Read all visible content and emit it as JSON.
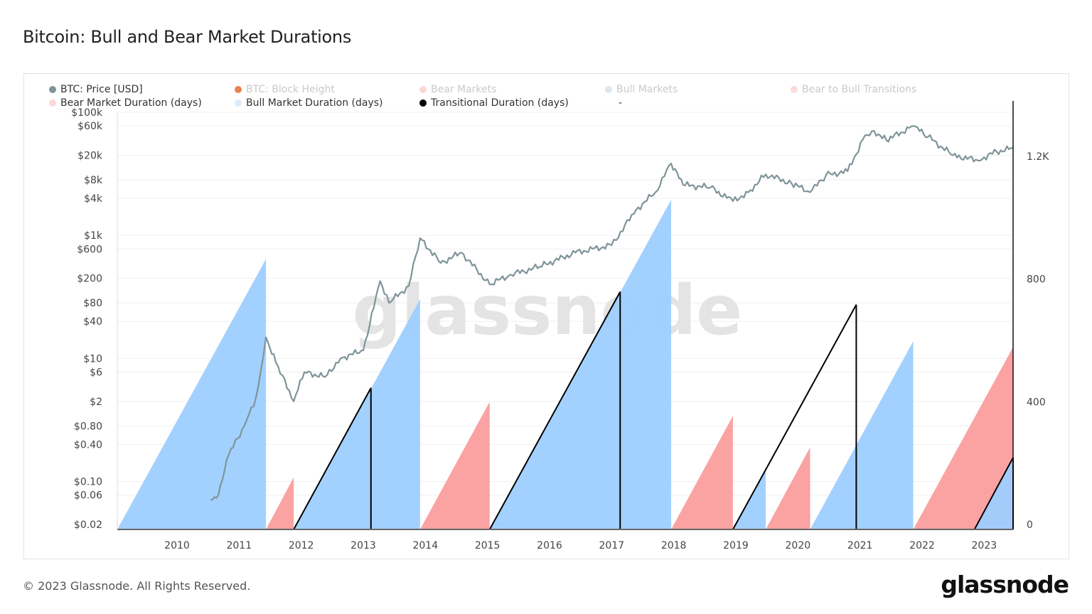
{
  "title": "Bitcoin: Bull and Bear Market Durations",
  "footer": "© 2023 Glassnode. All Rights Reserved.",
  "logo": "glassnode",
  "watermark": "glassnode",
  "legend": [
    {
      "label": "BTC: Price [USD]",
      "color": "#7f9499",
      "faded": false
    },
    {
      "label": "BTC: Block Height",
      "color": "#e8834f",
      "faded": true
    },
    {
      "label": "Bear Markets",
      "color": "#fcd5d5",
      "faded": true
    },
    {
      "label": "Bull Markets",
      "color": "#dce7ee",
      "faded": true
    },
    {
      "label": "Bear to Bull Transitions",
      "color": "#f9dcdc",
      "faded": true
    },
    {
      "label": "Bear Market Duration (days)",
      "color": "#fcd9d9",
      "faded": false
    },
    {
      "label": "Bull Market Duration (days)",
      "color": "#dcebfb",
      "faded": false
    },
    {
      "label": "Transitional Duration (days)",
      "color": "#000000",
      "faded": false
    },
    {
      "label": "-",
      "color": "",
      "faded": false
    }
  ],
  "chart_data": {
    "type": "area",
    "title": "Bitcoin: Bull and Bear Market Durations",
    "x_range": [
      "2009-01-15",
      "2023-06-20"
    ],
    "x_ticks": [
      "2010",
      "2011",
      "2012",
      "2013",
      "2014",
      "2015",
      "2016",
      "2017",
      "2018",
      "2019",
      "2020",
      "2021",
      "2022",
      "2023"
    ],
    "y_left": {
      "scale": "log",
      "range": [
        0.02,
        100000
      ],
      "ticks": [
        {
          "label": "$100k",
          "value": 100000
        },
        {
          "label": "$60k",
          "value": 60000
        },
        {
          "label": "$20k",
          "value": 20000
        },
        {
          "label": "$8k",
          "value": 8000
        },
        {
          "label": "$4k",
          "value": 4000
        },
        {
          "label": "$1k",
          "value": 1000
        },
        {
          "label": "$600",
          "value": 600
        },
        {
          "label": "$200",
          "value": 200
        },
        {
          "label": "$80",
          "value": 80
        },
        {
          "label": "$40",
          "value": 40
        },
        {
          "label": "$10",
          "value": 10
        },
        {
          "label": "$6",
          "value": 6
        },
        {
          "label": "$2",
          "value": 2
        },
        {
          "label": "$0.80",
          "value": 0.8
        },
        {
          "label": "$0.40",
          "value": 0.4
        },
        {
          "label": "$0.10",
          "value": 0.1
        },
        {
          "label": "$0.06",
          "value": 0.06
        },
        {
          "label": "$0.02",
          "value": 0.02
        }
      ]
    },
    "y_right": {
      "scale": "linear",
      "range": [
        0,
        1400
      ],
      "ticks": [
        {
          "label": "0",
          "value": 0
        },
        {
          "label": "400",
          "value": 400
        },
        {
          "label": "800",
          "value": 800
        },
        {
          "label": "1.2K",
          "value": 1200
        }
      ]
    },
    "colors": {
      "price": "#7f9499",
      "bull": "#9ecfff",
      "bear": "#fb9d9d",
      "transition": "#000000"
    },
    "grid": true,
    "legend_position": "top",
    "duration_series": [
      {
        "series": "Bull Market Duration (days)",
        "kind": "bull",
        "start": "2009-01-15",
        "end": "2011-06-08"
      },
      {
        "series": "Bear Market Duration (days)",
        "kind": "bear",
        "start": "2011-06-08",
        "end": "2011-11-18"
      },
      {
        "series": "Bull Market Duration (days)",
        "kind": "bull",
        "start": "2011-11-18",
        "end": "2013-12-01"
      },
      {
        "series": "Transitional Duration (days)",
        "kind": "transition",
        "start": "2011-11-18",
        "end": "2013-02-15"
      },
      {
        "series": "Bear Market Duration (days)",
        "kind": "bear",
        "start": "2013-12-01",
        "end": "2015-01-14"
      },
      {
        "series": "Bull Market Duration (days)",
        "kind": "bull",
        "start": "2015-01-14",
        "end": "2017-12-17"
      },
      {
        "series": "Transitional Duration (days)",
        "kind": "transition",
        "start": "2015-01-14",
        "end": "2017-02-20"
      },
      {
        "series": "Bear Market Duration (days)",
        "kind": "bear",
        "start": "2017-12-17",
        "end": "2018-12-15"
      },
      {
        "series": "Bull Market Duration (days)",
        "kind": "bull",
        "start": "2018-12-15",
        "end": "2019-06-26"
      },
      {
        "series": "Transitional Duration (days)",
        "kind": "transition",
        "start": "2018-12-15",
        "end": "2020-12-10"
      },
      {
        "series": "Bear Market Duration (days)",
        "kind": "bear",
        "start": "2019-06-26",
        "end": "2020-03-13"
      },
      {
        "series": "Bull Market Duration (days)",
        "kind": "bull",
        "start": "2020-03-13",
        "end": "2021-11-10"
      },
      {
        "series": "Bear Market Duration (days)",
        "kind": "bear",
        "start": "2021-11-10",
        "end": "2023-06-20"
      },
      {
        "series": "Bull Market Duration (days)",
        "kind": "bull",
        "start": "2022-11-05",
        "end": "2023-06-20"
      },
      {
        "series": "Transitional Duration (days)",
        "kind": "transition",
        "start": "2022-11-05",
        "end": "2023-06-20"
      }
    ],
    "price_series": {
      "name": "BTC: Price [USD]",
      "points": [
        [
          "2010-07-18",
          0.05
        ],
        [
          "2010-09-01",
          0.06
        ],
        [
          "2010-11-01",
          0.27
        ],
        [
          "2011-02-01",
          0.8
        ],
        [
          "2011-04-10",
          2.3
        ],
        [
          "2011-05-10",
          6.6
        ],
        [
          "2011-06-08",
          22
        ],
        [
          "2011-08-05",
          8.6
        ],
        [
          "2011-11-18",
          2.0
        ],
        [
          "2012-01-20",
          6
        ],
        [
          "2012-05-20",
          5
        ],
        [
          "2012-08-20",
          10
        ],
        [
          "2013-01-01",
          13.5
        ],
        [
          "2013-04-10",
          180
        ],
        [
          "2013-06-01",
          80
        ],
        [
          "2013-09-25",
          150
        ],
        [
          "2013-12-01",
          900
        ],
        [
          "2014-04-01",
          355
        ],
        [
          "2014-08-01",
          525
        ],
        [
          "2015-01-14",
          160
        ],
        [
          "2015-05-20",
          230
        ],
        [
          "2015-11-05",
          310
        ],
        [
          "2016-06-01",
          525
        ],
        [
          "2017-01-01",
          690
        ],
        [
          "2017-05-25",
          2600
        ],
        [
          "2017-09-15",
          5000
        ],
        [
          "2017-12-17",
          14700
        ],
        [
          "2018-02-25",
          6600
        ],
        [
          "2018-08-05",
          6000
        ],
        [
          "2018-12-15",
          3600
        ],
        [
          "2019-03-15",
          5000
        ],
        [
          "2019-06-26",
          9800
        ],
        [
          "2019-11-25",
          7000
        ],
        [
          "2020-03-13",
          5000
        ],
        [
          "2020-06-15",
          9500
        ],
        [
          "2020-10-20",
          11000
        ],
        [
          "2021-01-30",
          42000
        ],
        [
          "2021-03-25",
          50000
        ],
        [
          "2021-06-05",
          35000
        ],
        [
          "2021-11-10",
          60000
        ],
        [
          "2022-02-05",
          40000
        ],
        [
          "2022-07-01",
          20000
        ],
        [
          "2022-11-25",
          16500
        ],
        [
          "2023-03-15",
          23000
        ],
        [
          "2023-06-20",
          26000
        ]
      ]
    }
  }
}
